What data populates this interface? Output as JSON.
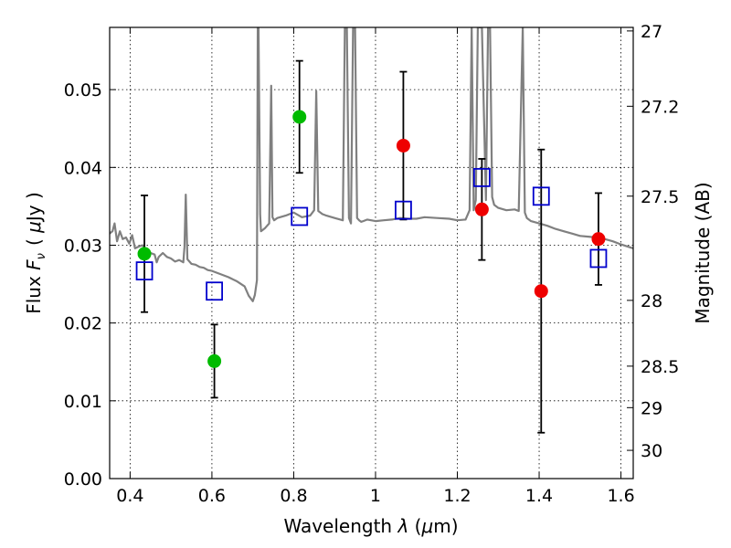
{
  "chart_data": {
    "type": "scatter",
    "title": "",
    "xlabel": "Wavelength  λ (μm)",
    "ylabel": "Flux  F_ν  ( μJy )",
    "xlabel_parts": {
      "main": "Wavelength ",
      "symbol": "λ",
      "open": " (",
      "unit_mu": "μ",
      "unit_rest": "m)"
    },
    "ylabel_parts": {
      "main": "Flux ",
      "symbol": "F",
      "sub": "ν",
      "unit_open": "( ",
      "unit_mu": "μ",
      "unit_rest": "Jy )"
    },
    "y2label": "Magnitude (AB)",
    "xlim": [
      0.35,
      1.63
    ],
    "ylim": [
      0.0,
      0.058
    ],
    "grid": true,
    "x_ticks": [
      0.4,
      0.6,
      0.8,
      1.0,
      1.2,
      1.4,
      1.6
    ],
    "x_tick_labels": [
      "0.4",
      "0.6",
      "0.8",
      "1",
      "1.2",
      "1.4",
      "1.6"
    ],
    "y_ticks": [
      0.0,
      0.01,
      0.02,
      0.03,
      0.04,
      0.05
    ],
    "y_tick_labels": [
      "0.00",
      "0.01",
      "0.02",
      "0.03",
      "0.04",
      "0.05"
    ],
    "y2_ticks": [
      27,
      27.2,
      27.5,
      28,
      28.5,
      29,
      30
    ],
    "y2_tick_labels": [
      "27",
      "27.2",
      "27.5",
      "28",
      "28.5",
      "29",
      "30"
    ],
    "colors": {
      "spectrum": "#808080",
      "green": "#00bb00",
      "red": "#ee0000",
      "model": "#0000cc",
      "errorbar": "#000000"
    },
    "series": [
      {
        "key": "green_obs",
        "marker": "circle",
        "points": [
          {
            "x": 0.435,
            "y": 0.0289,
            "err": 0.0075
          },
          {
            "x": 0.606,
            "y": 0.0151,
            "err": 0.0047
          },
          {
            "x": 0.814,
            "y": 0.0465,
            "err": 0.0072
          }
        ]
      },
      {
        "key": "red_obs",
        "marker": "circle",
        "points": [
          {
            "x": 1.068,
            "y": 0.0428,
            "err": 0.0095
          },
          {
            "x": 1.26,
            "y": 0.0346,
            "err": 0.0065
          },
          {
            "x": 1.405,
            "y": 0.0241,
            "err": 0.0182
          },
          {
            "x": 1.545,
            "y": 0.0308,
            "err": 0.0059
          }
        ]
      },
      {
        "key": "model_phot",
        "marker": "square",
        "points": [
          {
            "x": 0.435,
            "y": 0.0267
          },
          {
            "x": 0.606,
            "y": 0.0241
          },
          {
            "x": 0.814,
            "y": 0.0337
          },
          {
            "x": 1.068,
            "y": 0.0345
          },
          {
            "x": 1.26,
            "y": 0.0387
          },
          {
            "x": 1.405,
            "y": 0.0363
          },
          {
            "x": 1.545,
            "y": 0.0283
          }
        ]
      }
    ],
    "spectrum": {
      "x": [
        0.35,
        0.357,
        0.362,
        0.368,
        0.375,
        0.382,
        0.39,
        0.398,
        0.405,
        0.412,
        0.42,
        0.43,
        0.44,
        0.45,
        0.46,
        0.465,
        0.47,
        0.48,
        0.49,
        0.5,
        0.51,
        0.52,
        0.53,
        0.533,
        0.536,
        0.54,
        0.55,
        0.56,
        0.57,
        0.58,
        0.59,
        0.6,
        0.62,
        0.64,
        0.66,
        0.68,
        0.69,
        0.7,
        0.705,
        0.71,
        0.712,
        0.714,
        0.718,
        0.72,
        0.73,
        0.74,
        0.745,
        0.748,
        0.752,
        0.76,
        0.78,
        0.8,
        0.82,
        0.84,
        0.85,
        0.855,
        0.86,
        0.87,
        0.88,
        0.9,
        0.92,
        0.925,
        0.93,
        0.935,
        0.94,
        0.945,
        0.95,
        0.955,
        0.96,
        0.965,
        0.97,
        0.98,
        1.0,
        1.02,
        1.04,
        1.06,
        1.08,
        1.1,
        1.12,
        1.15,
        1.18,
        1.2,
        1.22,
        1.23,
        1.235,
        1.24,
        1.245,
        1.25,
        1.26,
        1.27,
        1.275,
        1.28,
        1.285,
        1.29,
        1.3,
        1.32,
        1.34,
        1.35,
        1.36,
        1.365,
        1.37,
        1.38,
        1.4,
        1.42,
        1.44,
        1.46,
        1.48,
        1.5,
        1.52,
        1.54,
        1.56,
        1.58,
        1.6,
        1.63
      ],
      "y": [
        0.0315,
        0.0318,
        0.0328,
        0.0305,
        0.0318,
        0.0308,
        0.031,
        0.0302,
        0.0313,
        0.0296,
        0.0298,
        0.03,
        0.0294,
        0.029,
        0.0288,
        0.0278,
        0.0285,
        0.029,
        0.0285,
        0.0283,
        0.0279,
        0.0281,
        0.0278,
        0.0298,
        0.0365,
        0.0282,
        0.0276,
        0.0275,
        0.0272,
        0.0271,
        0.0268,
        0.0267,
        0.0263,
        0.0259,
        0.0254,
        0.0247,
        0.0235,
        0.0228,
        0.0236,
        0.0255,
        0.058,
        0.058,
        0.034,
        0.0318,
        0.0322,
        0.0328,
        0.0505,
        0.0336,
        0.0332,
        0.0335,
        0.0338,
        0.0342,
        0.0336,
        0.0338,
        0.0345,
        0.0498,
        0.0344,
        0.034,
        0.0338,
        0.0335,
        0.0332,
        0.058,
        0.058,
        0.0335,
        0.0328,
        0.058,
        0.058,
        0.0335,
        0.0332,
        0.033,
        0.0331,
        0.0333,
        0.0331,
        0.0332,
        0.0333,
        0.0335,
        0.0334,
        0.0334,
        0.0336,
        0.0335,
        0.0334,
        0.0332,
        0.0333,
        0.0345,
        0.058,
        0.0345,
        0.0358,
        0.058,
        0.058,
        0.0358,
        0.058,
        0.058,
        0.0362,
        0.0352,
        0.0348,
        0.0345,
        0.0346,
        0.0344,
        0.058,
        0.0342,
        0.0335,
        0.0331,
        0.0328,
        0.0325,
        0.0321,
        0.0318,
        0.0315,
        0.0312,
        0.0311,
        0.031,
        0.0308,
        0.0305,
        0.0301,
        0.0296
      ]
    }
  }
}
